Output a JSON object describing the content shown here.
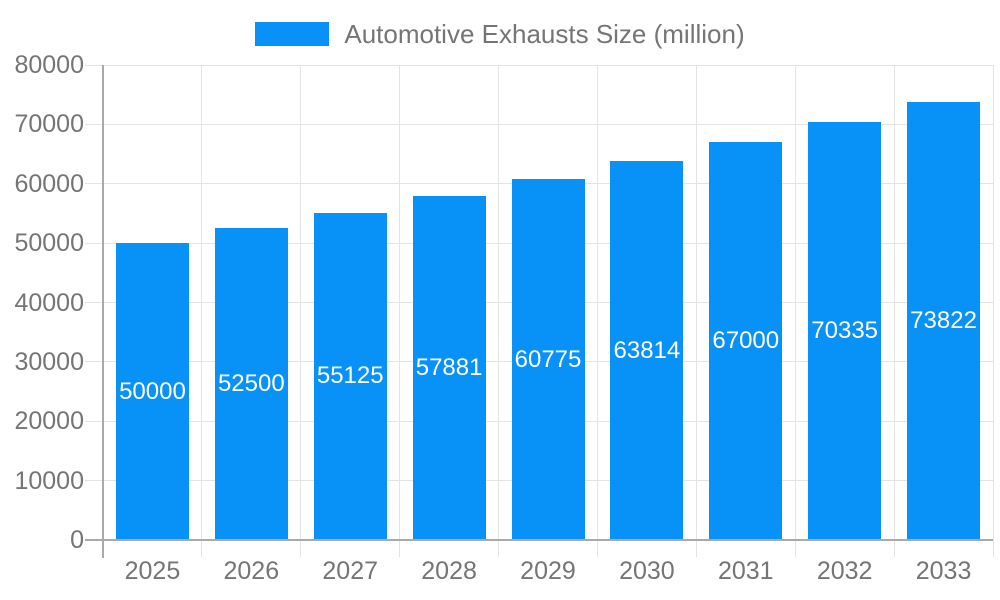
{
  "chart_data": {
    "type": "bar",
    "title": "",
    "xlabel": "",
    "ylabel": "",
    "legend": {
      "position": "top",
      "label": "Automotive Exhausts Size (million)"
    },
    "categories": [
      "2025",
      "2026",
      "2027",
      "2028",
      "2029",
      "2030",
      "2031",
      "2032",
      "2033"
    ],
    "series": [
      {
        "name": "Automotive Exhausts Size (million)",
        "values": [
          50000,
          52500,
          55125,
          57881,
          60775,
          63814,
          67000,
          70335,
          73822
        ],
        "value_labels": [
          "50000",
          "52500",
          "55125",
          "57881",
          "60775",
          "63814",
          "67000",
          "70335",
          "73822"
        ]
      }
    ],
    "ylim": [
      0,
      80000
    ],
    "y_tick_step": 10000,
    "y_tick_labels": [
      "0",
      "10000",
      "20000",
      "30000",
      "40000",
      "50000",
      "60000",
      "70000",
      "80000"
    ],
    "grid": true,
    "colors": {
      "bar": "#0892f8",
      "bar_label_text": "#ffffff",
      "axis_text": "#757575",
      "axis_line": "#a9a9a9",
      "gridline": "#e4e4e4"
    }
  }
}
